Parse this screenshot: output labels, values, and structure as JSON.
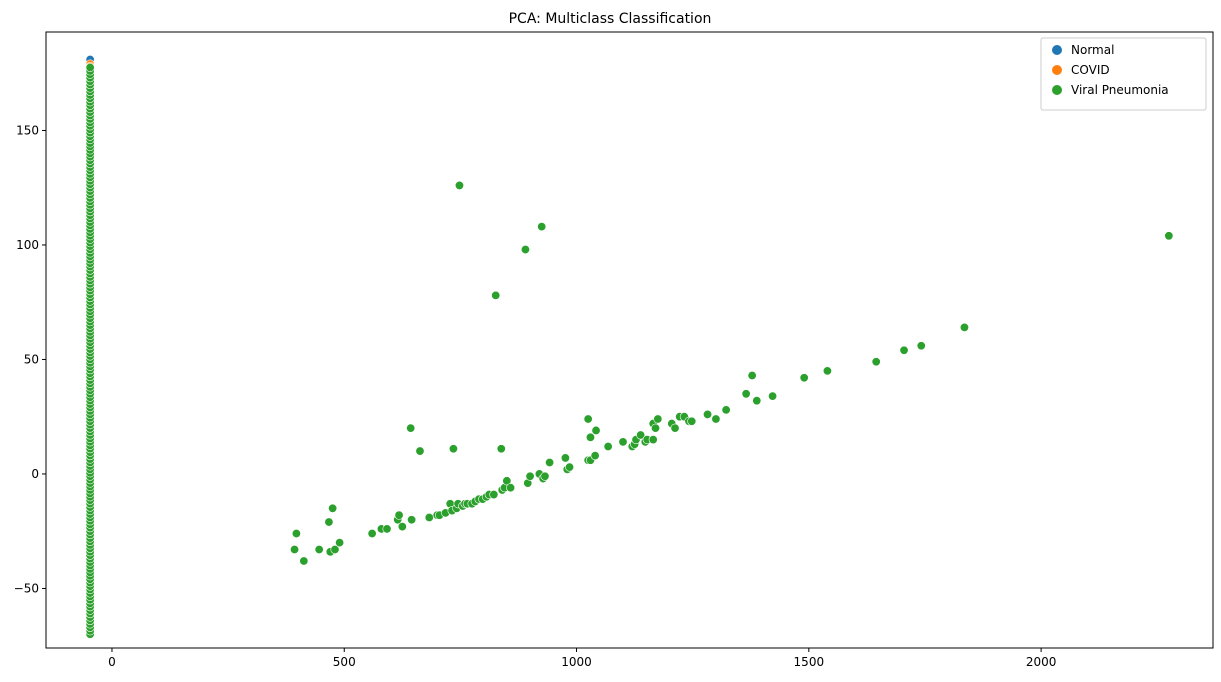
{
  "chart_data": {
    "type": "scatter",
    "title": "PCA: Multiclass Classification",
    "xlabel": "",
    "ylabel": "",
    "xlim": [
      -142,
      2370
    ],
    "ylim": [
      -76,
      193
    ],
    "xticks": [
      0,
      500,
      1000,
      1500,
      2000
    ],
    "yticks": [
      -50,
      0,
      50,
      100,
      150
    ],
    "xtick_labels": [
      "0",
      "500",
      "1000",
      "1500",
      "2000"
    ],
    "ytick_labels": [
      "−50",
      "0",
      "50",
      "100",
      "150"
    ],
    "grid": false,
    "legend": {
      "placement": "top-right",
      "entries": [
        "Normal",
        "COVID",
        "Viral Pneumonia"
      ]
    },
    "series": [
      {
        "name": "Normal",
        "color": "#1f77b4",
        "points": [
          [
            -47,
            181
          ],
          [
            -47,
            176
          ],
          [
            -47,
            170
          ],
          [
            -47,
            165
          ],
          [
            -47,
            160
          ],
          [
            -47,
            155
          ],
          [
            -47,
            150
          ],
          [
            -47,
            145
          ],
          [
            -47,
            140
          ]
        ]
      },
      {
        "name": "COVID",
        "color": "#ff7f0e",
        "points": [
          [
            -47,
            179
          ],
          [
            -47,
            178
          ],
          [
            -47,
            173
          ],
          [
            -47,
            168
          ],
          [
            -47,
            163
          ],
          [
            -47,
            158
          ],
          [
            -47,
            152
          ],
          [
            -47,
            147
          ],
          [
            -47,
            143
          ]
        ]
      },
      {
        "name": "Viral Pneumonia",
        "color": "#2ca02c",
        "column": {
          "x": -47,
          "y_from": -70,
          "y_to": 178,
          "step": 1.5
        },
        "points": [
          [
            393,
            -33
          ],
          [
            397,
            -26
          ],
          [
            413,
            -38
          ],
          [
            446,
            -33
          ],
          [
            467,
            -21
          ],
          [
            470,
            -34
          ],
          [
            475,
            -15
          ],
          [
            480,
            -33
          ],
          [
            490,
            -30
          ],
          [
            560,
            -26
          ],
          [
            580,
            -24
          ],
          [
            592,
            -24
          ],
          [
            615,
            -20
          ],
          [
            618,
            -18
          ],
          [
            625,
            -23
          ],
          [
            645,
            -20
          ],
          [
            643,
            20
          ],
          [
            663,
            10
          ],
          [
            683,
            -19
          ],
          [
            700,
            -18
          ],
          [
            705,
            -18
          ],
          [
            718,
            -17
          ],
          [
            728,
            -13
          ],
          [
            732,
            -16
          ],
          [
            735,
            11
          ],
          [
            742,
            -15
          ],
          [
            745,
            -13
          ],
          [
            755,
            -14
          ],
          [
            760,
            -13
          ],
          [
            765,
            -13
          ],
          [
            775,
            -13
          ],
          [
            782,
            -12
          ],
          [
            790,
            -11
          ],
          [
            798,
            -11
          ],
          [
            806,
            -10
          ],
          [
            812,
            -9
          ],
          [
            822,
            -9
          ],
          [
            840,
            -7
          ],
          [
            845,
            -6
          ],
          [
            850,
            -3
          ],
          [
            858,
            -6
          ],
          [
            838,
            11
          ],
          [
            895,
            -4
          ],
          [
            900,
            -1
          ],
          [
            920,
            0
          ],
          [
            928,
            -2
          ],
          [
            932,
            -1
          ],
          [
            942,
            5
          ],
          [
            976,
            7
          ],
          [
            980,
            2
          ],
          [
            985,
            3
          ],
          [
            1025,
            24
          ],
          [
            1025,
            6
          ],
          [
            1030,
            6
          ],
          [
            1030,
            16
          ],
          [
            1040,
            8
          ],
          [
            1042,
            19
          ],
          [
            1068,
            12
          ],
          [
            1100,
            14
          ],
          [
            1120,
            12
          ],
          [
            1125,
            13
          ],
          [
            1128,
            15
          ],
          [
            1138,
            17
          ],
          [
            1148,
            14
          ],
          [
            1152,
            15
          ],
          [
            1165,
            15
          ],
          [
            1165,
            22
          ],
          [
            1170,
            20
          ],
          [
            1175,
            24
          ],
          [
            1205,
            22
          ],
          [
            1212,
            20
          ],
          [
            1222,
            25
          ],
          [
            1232,
            25
          ],
          [
            1242,
            23
          ],
          [
            1248,
            23
          ],
          [
            1282,
            26
          ],
          [
            1300,
            24
          ],
          [
            1322,
            28
          ],
          [
            1365,
            35
          ],
          [
            1378,
            43
          ],
          [
            1388,
            32
          ],
          [
            1422,
            34
          ],
          [
            1490,
            42
          ],
          [
            1540,
            45
          ],
          [
            1645,
            49
          ],
          [
            1705,
            54
          ],
          [
            1742,
            56
          ],
          [
            1835,
            64
          ],
          [
            748,
            126
          ],
          [
            890,
            98
          ],
          [
            925,
            108
          ],
          [
            826,
            78
          ],
          [
            2275,
            104
          ]
        ]
      }
    ]
  }
}
